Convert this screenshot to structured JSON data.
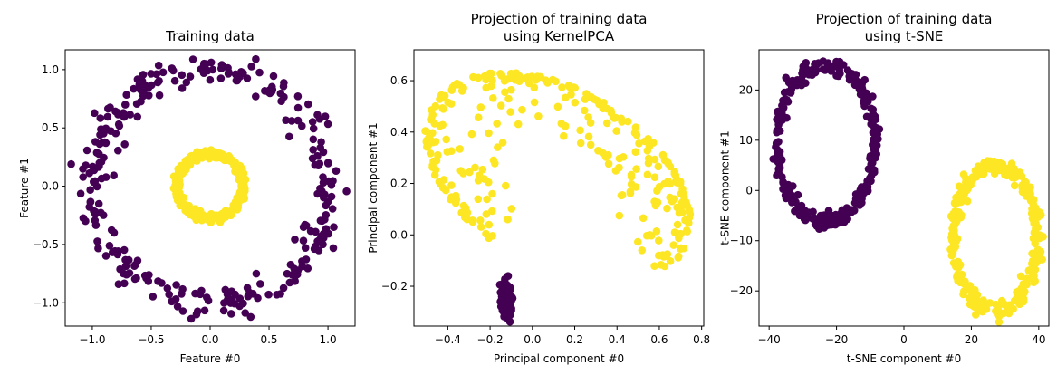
{
  "colors": {
    "outer_class": "#440154",
    "inner_class": "#fde725"
  },
  "chart_data": [
    {
      "type": "scatter",
      "title": "Training data",
      "xlabel": "Feature #0",
      "ylabel": "Feature #1",
      "xlim": [
        -1.23,
        1.23
      ],
      "ylim": [
        -1.2,
        1.17
      ],
      "xticks": [
        -1.0,
        -0.5,
        0.0,
        0.5,
        1.0
      ],
      "xtick_labels": [
        "−1.0",
        "−0.5",
        "0.0",
        "0.5",
        "1.0"
      ],
      "yticks": [
        -1.0,
        -0.5,
        0.0,
        0.5,
        1.0
      ],
      "ytick_labels": [
        "−1.0",
        "−0.5",
        "0.0",
        "0.5",
        "1.0"
      ],
      "series": [
        {
          "color": "#440154",
          "shape": "ring",
          "center": [
            0.0,
            0.0
          ],
          "rx": 1.0,
          "ry": 1.0,
          "spread": 0.07,
          "count": 300
        },
        {
          "color": "#fde725",
          "shape": "ring",
          "center": [
            0.0,
            0.0
          ],
          "rx": 0.28,
          "ry": 0.28,
          "spread": 0.06,
          "count": 300
        }
      ]
    },
    {
      "type": "scatter",
      "title": "Projection of training data\nusing KernelPCA",
      "xlabel": "Principal component #0",
      "ylabel": "Principal component #1",
      "xlim": [
        -0.56,
        0.81
      ],
      "ylim": [
        -0.355,
        0.72
      ],
      "xticks": [
        -0.4,
        -0.2,
        0.0,
        0.2,
        0.4,
        0.6,
        0.8
      ],
      "xtick_labels": [
        "−0.4",
        "−0.2",
        "0.0",
        "0.2",
        "0.4",
        "0.6",
        "0.8"
      ],
      "yticks": [
        -0.2,
        0.0,
        0.2,
        0.4,
        0.6
      ],
      "ytick_labels": [
        "−0.2",
        "0.0",
        "0.2",
        "0.4",
        "0.6"
      ],
      "series": [
        {
          "color": "#440154",
          "shape": "blob",
          "center": [
            -0.125,
            -0.255
          ],
          "rx": 0.018,
          "ry": 0.045,
          "count": 300
        },
        {
          "color": "#fde725",
          "shape": "kpca_arc",
          "center": [
            0.12,
            0.22
          ],
          "count": 300
        }
      ]
    },
    {
      "type": "scatter",
      "title": "Projection of training data\nusing t-SNE",
      "xlabel": "t-SNE component #0",
      "ylabel": "t-SNE component #1",
      "xlim": [
        -43.0,
        43.0
      ],
      "ylim": [
        -27.0,
        28.0
      ],
      "xticks": [
        -40,
        -20,
        0,
        20,
        40
      ],
      "xtick_labels": [
        "−40",
        "−20",
        "0",
        "20",
        "40"
      ],
      "yticks": [
        -20,
        -10,
        0,
        10,
        20
      ],
      "ytick_labels": [
        "−20",
        "−10",
        "0",
        "10",
        "20"
      ],
      "series": [
        {
          "color": "#440154",
          "shape": "ring",
          "center": [
            -23.0,
            9.5
          ],
          "rx": 14.5,
          "ry": 15.5,
          "spread": 0.05,
          "count": 300
        },
        {
          "color": "#fde725",
          "shape": "ring",
          "center": [
            27.0,
            -9.5
          ],
          "rx": 12.5,
          "ry": 14.5,
          "spread": 0.06,
          "count": 300
        }
      ]
    }
  ]
}
